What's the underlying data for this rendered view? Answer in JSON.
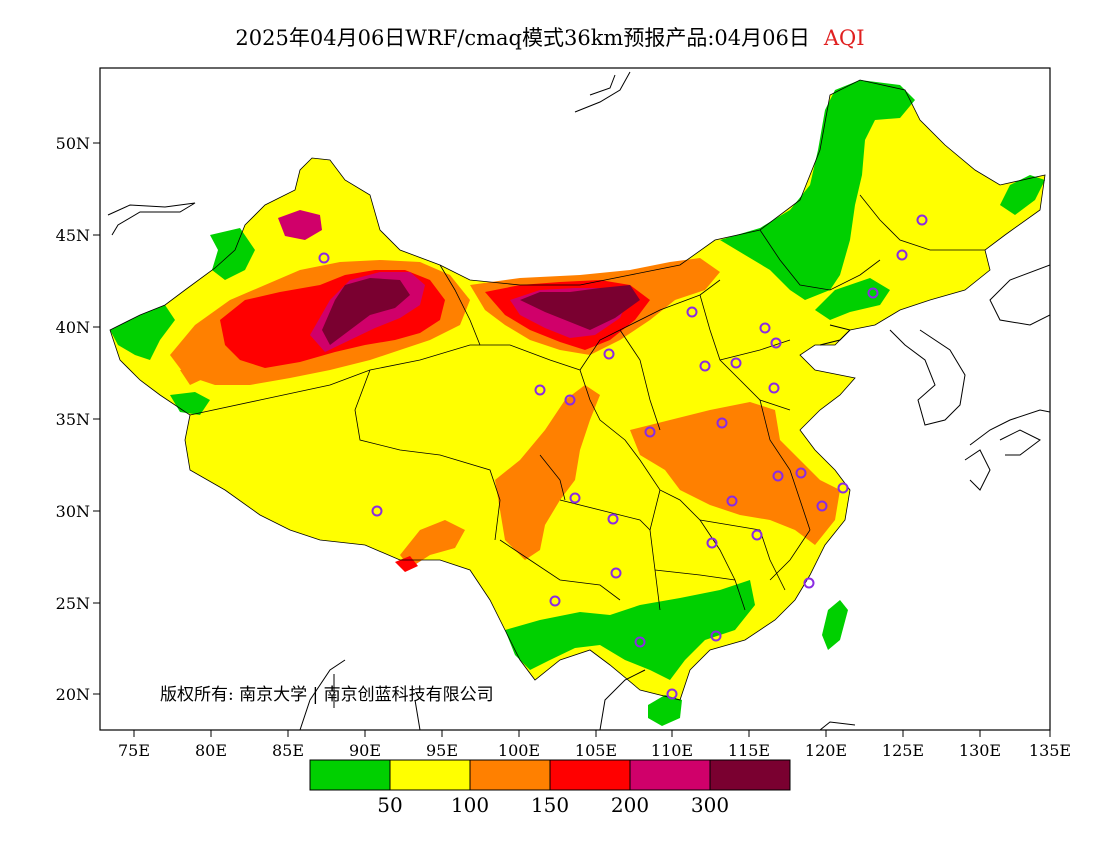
{
  "header": {
    "title": "2025年04月06日WRF/cmaq模式36km预报产品:04月06日",
    "variable": "AQI"
  },
  "copyright": "版权所有: 南京大学 | 南京创蓝科技有限公司",
  "axes": {
    "x_ticks": [
      "75E",
      "80E",
      "85E",
      "90E",
      "95E",
      "100E",
      "105E",
      "110E",
      "115E",
      "120E",
      "125E",
      "130E",
      "135E"
    ],
    "y_ticks": [
      "50N",
      "45N",
      "40N",
      "35N",
      "30N",
      "25N",
      "20N"
    ]
  },
  "legend": {
    "colors": [
      "#00d000",
      "#ffff00",
      "#ff8000",
      "#ff0000",
      "#d0006a",
      "#7a0030"
    ],
    "labels": [
      "50",
      "100",
      "150",
      "200",
      "300"
    ]
  },
  "city_markers_color": "#8a2be2"
}
